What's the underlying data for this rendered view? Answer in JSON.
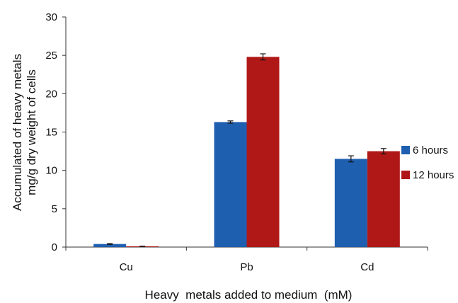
{
  "chart_data": {
    "type": "bar",
    "categories": [
      "Cu",
      "Pb",
      "Cd"
    ],
    "series": [
      {
        "name": "6 hours",
        "values": [
          0.4,
          16.3,
          11.5
        ],
        "errors": [
          0.05,
          0.15,
          0.4
        ],
        "color": "#1f5fb0"
      },
      {
        "name": "12 hours",
        "values": [
          0.1,
          24.8,
          12.5
        ],
        "errors": [
          0.02,
          0.4,
          0.35
        ],
        "color": "#b01817"
      }
    ],
    "title": "",
    "xlabel": "Heavy  metals added to medium  (mM)",
    "ylabel_lines": [
      "Accumulated of heavy metals",
      "mg/g  dry weight of cells"
    ],
    "ylim": [
      0,
      30
    ],
    "yticks": [
      0,
      5,
      10,
      15,
      20,
      25,
      30
    ],
    "grid": false,
    "legend_position": "right"
  }
}
